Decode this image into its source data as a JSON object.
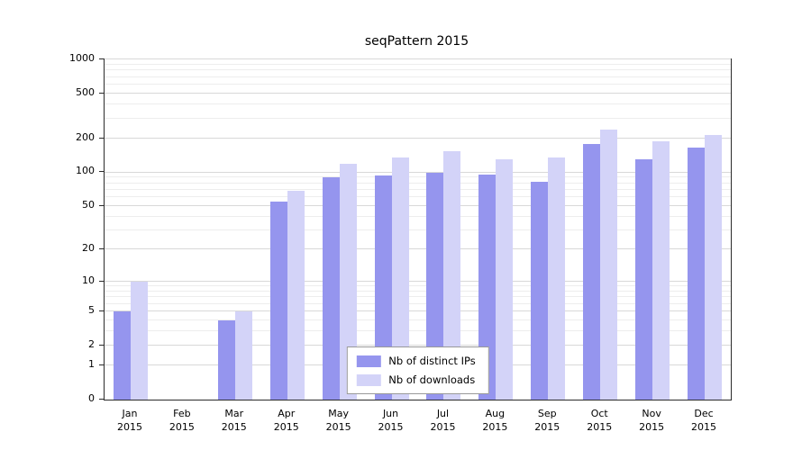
{
  "chart_data": {
    "type": "bar",
    "title": "seqPattern 2015",
    "year": "2015",
    "categories": [
      "Jan",
      "Feb",
      "Mar",
      "Apr",
      "May",
      "Jun",
      "Jul",
      "Aug",
      "Sep",
      "Oct",
      "Nov",
      "Dec"
    ],
    "series": [
      {
        "name": "Nb of distinct IPs",
        "color": "#9595ee",
        "values": [
          5,
          0,
          4,
          55,
          90,
          93,
          100,
          95,
          82,
          180,
          130,
          165
        ]
      },
      {
        "name": "Nb of downloads",
        "color": "#d3d3f8",
        "values": [
          10,
          0,
          5,
          68,
          120,
          135,
          155,
          130,
          135,
          240,
          190,
          215
        ]
      }
    ],
    "y_ticks": [
      0,
      1,
      2,
      5,
      10,
      20,
      50,
      100,
      200,
      500,
      1000
    ],
    "minor_gridlines": [
      3,
      4,
      6,
      7,
      8,
      9,
      30,
      40,
      60,
      70,
      80,
      90,
      300,
      400,
      600,
      700,
      800,
      900
    ],
    "scale": "log",
    "ylim": [
      0,
      1000
    ],
    "grid": "horizontal",
    "legend_position": "bottom-center"
  }
}
